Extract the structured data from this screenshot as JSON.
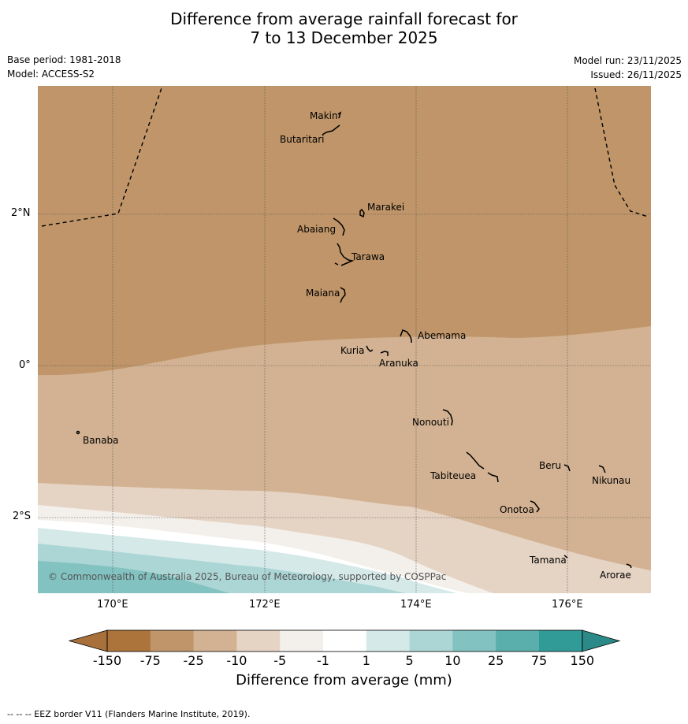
{
  "title": {
    "line1": "Difference from average rainfall forecast for",
    "line2": "7 to 13 December 2025"
  },
  "meta": {
    "base_period": "Base period: 1981-2018",
    "model": "Model: ACCESS-S2",
    "model_run": "Model run: 23/11/2025",
    "issued": "Issued: 26/11/2025"
  },
  "axes": {
    "lon_ticks": [
      "170°E",
      "172°E",
      "174°E",
      "176°E"
    ],
    "lat_ticks": [
      "2°N",
      "0°",
      "2°S"
    ]
  },
  "places": [
    "Makin",
    "Butaritari",
    "Marakei",
    "Abaiang",
    "Tarawa",
    "Maiana",
    "Abemama",
    "Kuria",
    "Aranuka",
    "Banaba",
    "Nonouti",
    "Tabiteuea",
    "Beru",
    "Nikunau",
    "Onotoa",
    "Tamana",
    "Arorae"
  ],
  "copyright": "© Commonwealth of Australia 2025, Bureau of Meteorology, supported by COSPPac",
  "colorbar": {
    "title": "Difference from average (mm)",
    "labels": [
      "-150",
      "-75",
      "-25",
      "-10",
      "-5",
      "-1",
      "1",
      "5",
      "10",
      "25",
      "75",
      "150"
    ],
    "colors": {
      "below_min": "#a8703a",
      "c1": "#ac733b",
      "c2": "#bf9569",
      "c3": "#d2b292",
      "c4": "#e5d3c3",
      "c5": "#f3efea",
      "c6": "#ffffff",
      "c7": "#d5e9e9",
      "c8": "#acd6d5",
      "c9": "#82c2c0",
      "c10": "#5aaeac",
      "c11": "#319b98",
      "above_max": "#2b8a87"
    }
  },
  "footer": "-- -- -- EEZ border V11 (Flanders Marine Institute, 2019)."
}
